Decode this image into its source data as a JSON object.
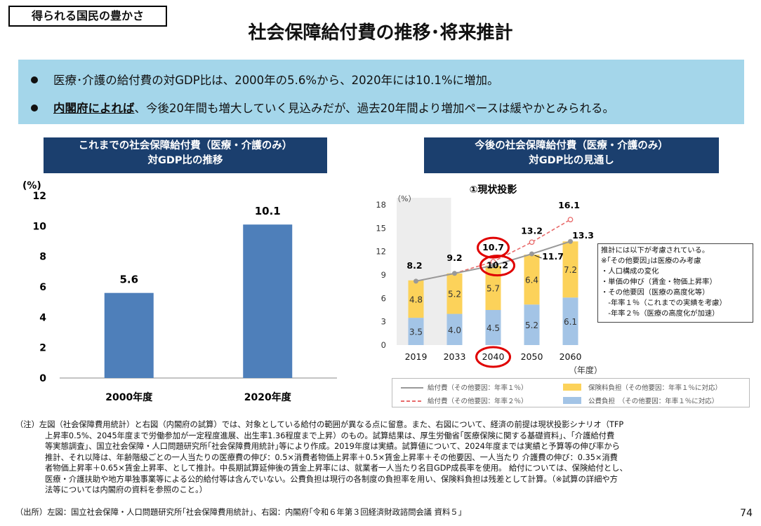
{
  "tag": "得られる国民の豊かさ",
  "title": "社会保障給付費の推移･将来推計",
  "summary": {
    "bullet1": "医療･介護の給付費の対GDP比は、2000年の5.6%から、2020年には10.1%に増加。",
    "bullet2_emph": "内閣府によれば",
    "bullet2_rest": "、今後20年間も増大していく見込みだが、過去20年間より増加ペースは緩やかとみられる。"
  },
  "left_panel": {
    "header_line1": "これまでの社会保障給付費（医療・介護のみ）",
    "header_line2": "対GDP比の推移"
  },
  "right_panel": {
    "header_line1": "今後の社会保障給付費（医療・介護のみ）",
    "header_line2": "対GDP比の見通し",
    "subtitle": "①現状投影"
  },
  "colors": {
    "header_bg": "#1b3f6e",
    "summary_bg": "#a4d6ea",
    "bar_left": "#4e7fba",
    "public": "#a3c4e6",
    "insurance": "#fcd25a",
    "line_solid": "#999999",
    "line_dashed": "#e86a6a",
    "highlight_circle": "#e00000",
    "projection_shade": "#ededed"
  },
  "chart_data": [
    {
      "type": "bar",
      "ylabel": "(%)",
      "ylim": [
        0,
        12
      ],
      "yticks": [
        "0",
        "2",
        "4",
        "6",
        "8",
        "10",
        "12"
      ],
      "categories": [
        "2000年度",
        "2020年度"
      ],
      "values": [
        5.6,
        10.1
      ],
      "data_labels": [
        "5.6",
        "10.1"
      ],
      "grid": false
    },
    {
      "type": "bar",
      "stacked": true,
      "ylabel": "（%）",
      "xlabel": "（年度）",
      "ylim": [
        0,
        18
      ],
      "yticks": [
        "0",
        "3",
        "6",
        "9",
        "12",
        "15",
        "18"
      ],
      "categories": [
        "2019",
        "2033",
        "2040",
        "2050",
        "2060"
      ],
      "series": [
        {
          "name": "公費負担　（その他要因：年率１％に対応）",
          "values": [
            3.5,
            4.0,
            4.5,
            5.2,
            6.1
          ],
          "labels": [
            "3.5",
            "4.0",
            "4.5",
            "5.2",
            "6.1"
          ]
        },
        {
          "name": "保険料負担（その他要因：年率１％に対応）",
          "values": [
            4.8,
            5.2,
            5.7,
            6.4,
            7.2
          ],
          "labels": [
            "4.8",
            "5.2",
            "5.7",
            "6.4",
            "7.2"
          ]
        }
      ],
      "lines": [
        {
          "name": "給付費（その他要因：年率１％）",
          "style": "solid",
          "values": [
            8.2,
            9.2,
            10.2,
            11.7,
            13.3
          ],
          "labels": [
            "8.2",
            "9.2",
            "10.2",
            "11.7",
            "13.3"
          ]
        },
        {
          "name": "給付費（その他要因：年率２％）",
          "style": "dashed",
          "values": [
            8.2,
            9.2,
            10.7,
            13.2,
            16.1
          ],
          "labels": [
            "",
            "",
            "10.7",
            "13.2",
            "16.1"
          ]
        }
      ],
      "highlighted": [
        "10.7",
        "10.2",
        "2040"
      ],
      "shaded_category": "2019"
    }
  ],
  "legend": [
    {
      "label": "給付費（その他要因：年率１％）",
      "kind": "line-solid"
    },
    {
      "label": "保険料負担（その他要因：年率１％に対応）",
      "kind": "box-insurance"
    },
    {
      "label": "給付費（その他要因：年率２％）",
      "kind": "line-dashed"
    },
    {
      "label": "公費負担　（その他要因：年率１％に対応）",
      "kind": "box-public"
    }
  ],
  "notebox": [
    "推計には以下が考慮されている。",
    "※｢その他要因｣は医療のみ考慮",
    "・人口構成の変化",
    "・単価の伸び（賃金・物価上昇率）",
    "・その他要因（医療の高度化等）",
    "　-年率１％（これまでの実績を考慮）",
    "　-年率２％（医療の高度化が加速）"
  ],
  "notes": [
    "（注）左図（社会保障費用統計）と右図（内閣府の試算）では、対象としている給付の範囲が異なる点に留意。また、右図について、経済の前提は現状投影シナリオ（TFP",
    "上昇率0.5%、2045年度まで労働参加が一定程度進展、出生率1.36程度まで上昇）のもの。試算結果は、厚生労働省｢医療保険に関する基礎資料｣、｢介護給付費",
    "等実態調査｣、国立社会保障・人口問題研究所｢社会保障費用統計｣等により作成。2019年度は実績。試算値について、2024年度までは実績と予算等の伸び率から",
    "推計、それ以降は、年齢階級ごとの一人当たりの医療費の伸び：0.5×消費者物価上昇率＋0.5×賃金上昇率＋その他要因、一人当たり 介護費の伸び：0.35×消費",
    "者物価上昇率＋0.65×賃金上昇率、として推計。中長期試算延伸後の賃金上昇率には、就業者一人当たり名目GDP成長率を使用。 給付については、保険給付とし、",
    "医療・介護扶助や地方単独事業等による公的給付等は含んでいない。公費負担は現行の各制度の負担率を用い、保険料負担は残差として計算。（※試算の詳細や方",
    "法等については内閣府の資料を参照のこと。）"
  ],
  "source": "（出所）左図：国立社会保障・人口問題研究所｢社会保障費用統計｣、右図：内閣府｢令和６年第３回経済財政諮問会議 資料５｣",
  "page_number": "74"
}
